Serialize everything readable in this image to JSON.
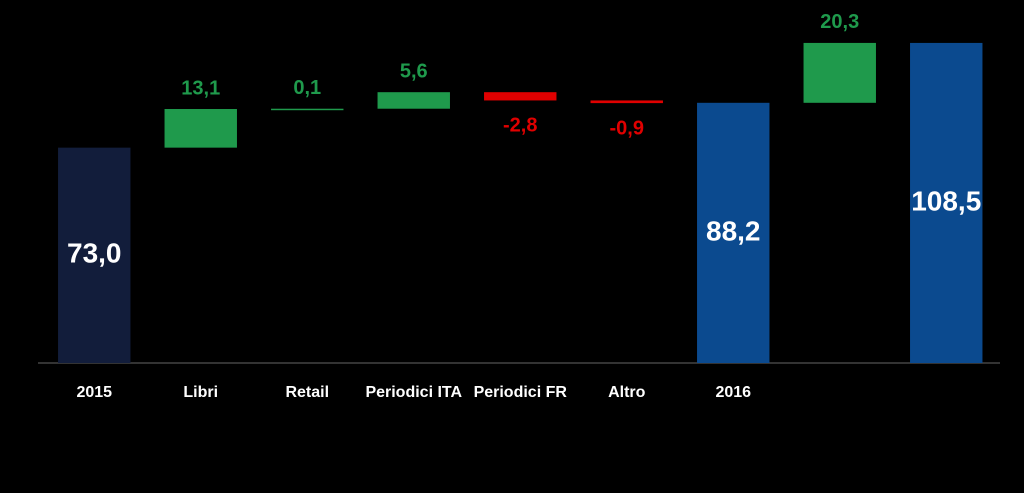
{
  "chart_data": {
    "type": "waterfall",
    "categories": [
      "2015",
      "Libri",
      "Retail",
      "Periodici ITA",
      "Periodici FR",
      "Altro",
      "2016",
      null,
      null
    ],
    "values": [
      73.0,
      13.1,
      0.1,
      5.6,
      -2.8,
      -0.9,
      88.2,
      20.3,
      108.5
    ],
    "value_labels": [
      "73,0",
      "13,1",
      "0,1",
      "5,6",
      "-2,8",
      "-0,9",
      "88,2",
      "20,3",
      "108,5"
    ],
    "measure": [
      "absolute",
      "relative",
      "relative",
      "relative",
      "relative",
      "relative",
      "absolute",
      "relative",
      "absolute"
    ],
    "colors": [
      "#121d3b",
      "#1f9a4c",
      "#1f9a4c",
      "#1f9a4c",
      "#e00000",
      "#e00000",
      "#0b4a8f",
      "#1f9a4c",
      "#0b4a8f"
    ],
    "ylim": [
      0,
      120
    ]
  }
}
